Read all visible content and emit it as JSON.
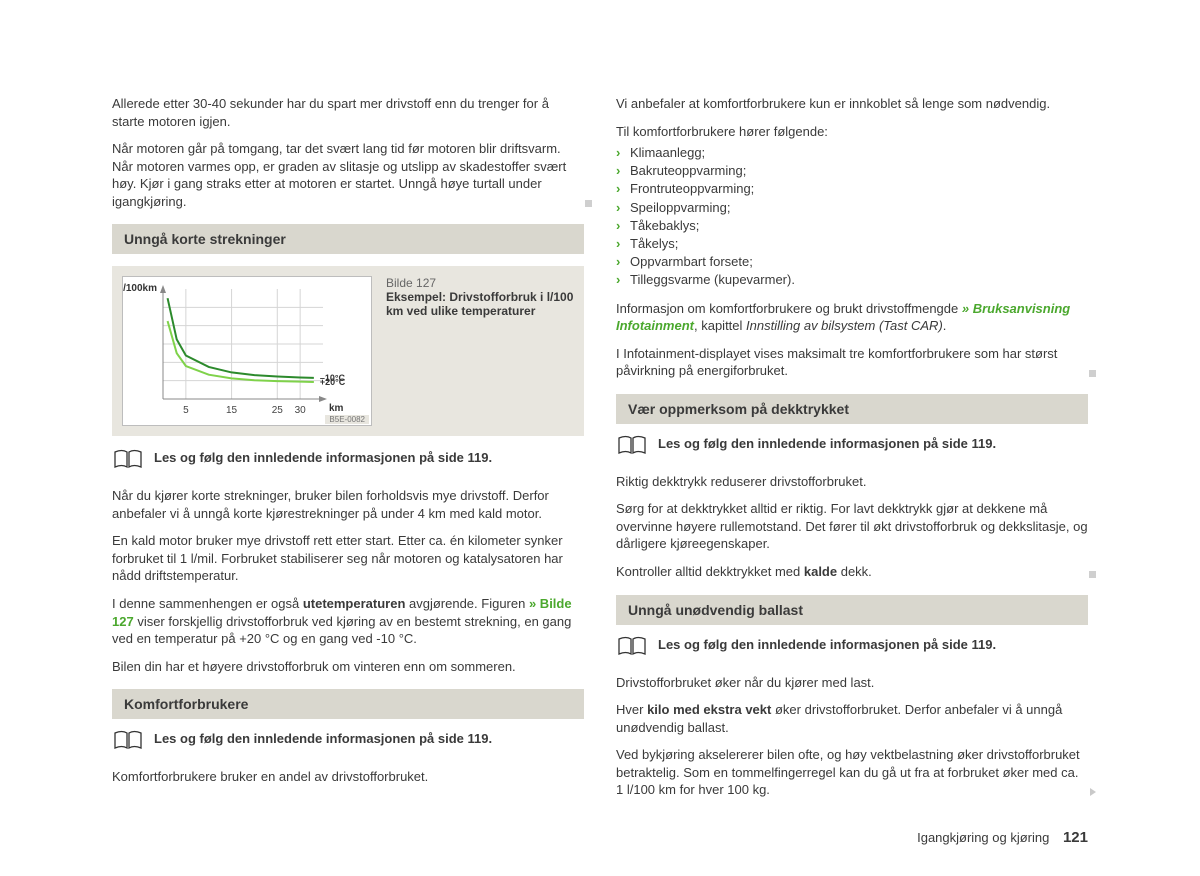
{
  "left": {
    "intro1": "Allerede etter 30-40 sekunder har du spart mer drivstoff enn du trenger for å starte motoren igjen.",
    "intro2": "Når motoren går på tomgang, tar det svært lang tid før motoren blir driftsvarm. Når motoren varmes opp, er graden av slitasje og utslipp av skadestoffer svært høy. Kjør i gang straks etter at motoren er startet. Unngå høye turtall under igangkjøring.",
    "sec1": {
      "title": "Unngå korte strekninger",
      "fig_caption_title": "Bilde 127",
      "fig_caption_text": "Eksempel: Drivstofforbruk i l/100 km ved ulike temperaturer",
      "fig_tag": "B5E-0082",
      "info": "Les og følg den innledende informasjonen på side 119.",
      "p1": "Når du kjører korte strekninger, bruker bilen forholdsvis mye drivstoff. Derfor anbefaler vi å unngå korte kjørestrekninger på under 4 km med kald motor.",
      "p2": "En kald motor bruker mye drivstoff rett etter start. Etter ca. én kilometer synker forbruket til 1 l/mil. Forbruket stabiliserer seg når motoren og katalysatoren har nådd driftstemperatur.",
      "p3_a": "I denne sammenhengen er også ",
      "p3_b": "utetemperaturen",
      "p3_c": " avgjørende. Figuren ",
      "p3_d": "» Bilde 127",
      "p3_e": " viser forskjellig drivstofforbruk ved kjøring av en bestemt strekning, en gang ved en temperatur på +20 °C og en gang ved -10 °C.",
      "p4": "Bilen din har et høyere drivstofforbruk om vinteren enn om sommeren."
    },
    "sec2": {
      "title": "Komfortforbrukere",
      "info": "Les og følg den innledende informasjonen på side 119.",
      "p1": "Komfortforbrukere bruker en andel av drivstofforbruket."
    }
  },
  "right": {
    "p1": "Vi anbefaler at komfortforbrukere kun er innkoblet så lenge som nødvendig.",
    "p2": "Til komfortforbrukere hører følgende:",
    "bullets": [
      "Klimaanlegg;",
      "Bakruteoppvarming;",
      "Frontruteoppvarming;",
      "Speiloppvarming;",
      "Tåkebaklys;",
      "Tåkelys;",
      "Oppvarmbart forsete;",
      "Tilleggsvarme (kupevarmer)."
    ],
    "p3_a": "Informasjon om komfortforbrukere og brukt drivstoffmengde ",
    "p3_b": "» Bruksanvisning Infotainment",
    "p3_c": ", kapittel ",
    "p3_d": "Innstilling av bilsystem (Tast CAR)",
    "p3_e": ".",
    "p4": "I Infotainment-displayet vises maksimalt tre komfortforbrukere som har størst påvirkning på energiforbruket.",
    "sec3": {
      "title": "Vær oppmerksom på dekktrykket",
      "info": "Les og følg den innledende informasjonen på side 119.",
      "p1": "Riktig dekktrykk reduserer drivstofforbruket.",
      "p2": "Sørg for at dekktrykket alltid er riktig. For lavt dekktrykk gjør at dekkene må overvinne høyere rullemotstand. Det fører til økt drivstofforbruk og dekkslitasje, og dårligere kjøreegenskaper.",
      "p3_a": "Kontroller alltid dekktrykket med ",
      "p3_b": "kalde",
      "p3_c": " dekk."
    },
    "sec4": {
      "title": "Unngå unødvendig ballast",
      "info": "Les og følg den innledende informasjonen på side 119.",
      "p1": "Drivstofforbruket øker når du kjører med last.",
      "p2_a": "Hver ",
      "p2_b": "kilo med ekstra vekt",
      "p2_c": " øker drivstofforbruket. Derfor anbefaler vi å unngå unødvendig ballast.",
      "p3": "Ved bykjøring akselererer bilen ofte, og høy vektbelastning øker drivstofforbruket betraktelig. Som en tommelfingerregel kan du gå ut fra at forbruket øker med ca. 1 l/100 km for hver 100 kg."
    }
  },
  "chart": {
    "type": "line",
    "ylabel": "l/100km",
    "xlabel": "km",
    "xticks": [
      5,
      15,
      25,
      30
    ],
    "series": [
      {
        "label": "–10°C",
        "color": "#2c8a2c",
        "points": [
          [
            1,
            22
          ],
          [
            3,
            13
          ],
          [
            5,
            9.5
          ],
          [
            10,
            7
          ],
          [
            15,
            5.8
          ],
          [
            20,
            5.2
          ],
          [
            25,
            4.9
          ],
          [
            30,
            4.7
          ],
          [
            33,
            4.6
          ]
        ]
      },
      {
        "label": "+20°C",
        "color": "#7fd24a",
        "points": [
          [
            1,
            17
          ],
          [
            3,
            10
          ],
          [
            5,
            7.2
          ],
          [
            10,
            5.3
          ],
          [
            15,
            4.5
          ],
          [
            20,
            4.1
          ],
          [
            25,
            3.9
          ],
          [
            30,
            3.8
          ],
          [
            33,
            3.7
          ]
        ]
      }
    ],
    "xlim": [
      0,
      35
    ],
    "ylim": [
      0,
      24
    ],
    "grid_color": "#d5d5d5",
    "line_width": 2,
    "title_fontsize": 11,
    "background_color": "#ffffff"
  },
  "footer": {
    "section": "Igangkjøring og kjøring",
    "page": "121"
  }
}
